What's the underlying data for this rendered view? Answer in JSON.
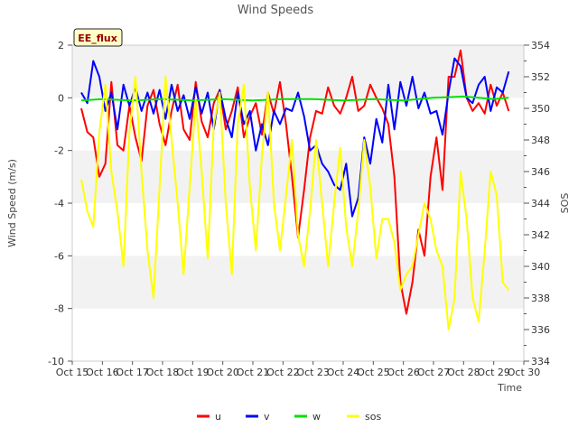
{
  "chart_data": {
    "type": "line",
    "title": "Wind Speeds",
    "badge": "EE_flux",
    "xlabel": "Time",
    "ylabel": "Wind Speed (m/s)",
    "y2label": "SOS",
    "ylim": [
      -10,
      2
    ],
    "y2lim": [
      334,
      354
    ],
    "xlim": [
      0,
      15
    ],
    "yticks": [
      -10,
      -8,
      -6,
      -4,
      -2,
      0,
      2
    ],
    "y2ticks": [
      334,
      336,
      338,
      340,
      342,
      344,
      346,
      348,
      350,
      352,
      354
    ],
    "xticks": [
      0,
      1,
      2,
      3,
      4,
      5,
      6,
      7,
      8,
      9,
      10,
      11,
      12,
      13,
      14,
      15
    ],
    "xticklabels": [
      "Oct 15",
      "Oct 16",
      "Oct 17",
      "Oct 18",
      "Oct 19",
      "Oct 20",
      "Oct 21",
      "Oct 22",
      "Oct 23",
      "Oct 24",
      "Oct 25",
      "Oct 26",
      "Oct 27",
      "Oct 28",
      "Oct 29",
      "Oct 30"
    ],
    "x_units": "days since Oct 15",
    "grid": "horizontal bands",
    "legend_position": "bottom-center",
    "series": [
      {
        "name": "u",
        "color": "#ff0000",
        "axis": "left",
        "x": [
          0.3,
          0.5,
          0.7,
          0.9,
          1.1,
          1.3,
          1.5,
          1.7,
          1.9,
          2.1,
          2.3,
          2.5,
          2.7,
          2.9,
          3.1,
          3.3,
          3.5,
          3.7,
          3.9,
          4.1,
          4.3,
          4.5,
          4.7,
          4.9,
          5.1,
          5.3,
          5.5,
          5.7,
          5.9,
          6.1,
          6.3,
          6.5,
          6.7,
          6.9,
          7.1,
          7.3,
          7.5,
          7.7,
          7.9,
          8.1,
          8.3,
          8.5,
          8.7,
          8.9,
          9.1,
          9.3,
          9.5,
          9.7,
          9.9,
          10.1,
          10.3,
          10.5,
          10.7,
          10.9,
          11.1,
          11.3,
          11.5,
          11.7,
          11.9,
          12.1,
          12.3,
          12.5,
          12.7,
          12.9,
          13.1,
          13.3,
          13.5,
          13.7,
          13.9,
          14.1,
          14.3,
          14.5
        ],
        "values": [
          -0.4,
          -1.3,
          -1.5,
          -3.0,
          -2.5,
          0.6,
          -1.8,
          -2.0,
          -0.3,
          -1.5,
          -2.4,
          -0.3,
          0.3,
          -1.0,
          -1.8,
          -0.5,
          0.5,
          -1.2,
          -1.6,
          0.6,
          -0.9,
          -1.5,
          -0.2,
          0.3,
          -1.2,
          -0.5,
          0.4,
          -1.5,
          -0.7,
          -0.2,
          -1.4,
          0.2,
          -0.6,
          0.6,
          -1.0,
          -3.0,
          -5.3,
          -3.5,
          -1.5,
          -0.5,
          -0.6,
          0.4,
          -0.3,
          -0.6,
          0.0,
          0.8,
          -0.5,
          -0.3,
          0.5,
          0.0,
          -0.4,
          -1.0,
          -3.0,
          -7.0,
          -8.2,
          -7.0,
          -5.0,
          -6.0,
          -3.0,
          -1.5,
          -3.5,
          0.8,
          0.8,
          1.8,
          0.0,
          -0.5,
          -0.2,
          -0.6,
          0.5,
          -0.3,
          0.2,
          -0.5
        ]
      },
      {
        "name": "v",
        "color": "#0000ff",
        "axis": "left",
        "x": [
          0.3,
          0.5,
          0.7,
          0.9,
          1.1,
          1.3,
          1.5,
          1.7,
          1.9,
          2.1,
          2.3,
          2.5,
          2.7,
          2.9,
          3.1,
          3.3,
          3.5,
          3.7,
          3.9,
          4.1,
          4.3,
          4.5,
          4.7,
          4.9,
          5.1,
          5.3,
          5.5,
          5.7,
          5.9,
          6.1,
          6.3,
          6.5,
          6.7,
          6.9,
          7.1,
          7.3,
          7.5,
          7.7,
          7.9,
          8.1,
          8.3,
          8.5,
          8.7,
          8.9,
          9.1,
          9.3,
          9.5,
          9.7,
          9.9,
          10.1,
          10.3,
          10.5,
          10.7,
          10.9,
          11.1,
          11.3,
          11.5,
          11.7,
          11.9,
          12.1,
          12.3,
          12.5,
          12.7,
          12.9,
          13.1,
          13.3,
          13.5,
          13.7,
          13.9,
          14.1,
          14.3,
          14.5
        ],
        "values": [
          0.2,
          -0.2,
          1.4,
          0.8,
          -0.5,
          0.2,
          -1.2,
          0.5,
          -0.3,
          0.4,
          -0.5,
          0.2,
          -0.6,
          0.3,
          -0.8,
          0.5,
          -0.5,
          0.1,
          -0.8,
          0.4,
          -0.6,
          0.2,
          -1.2,
          0.3,
          -0.8,
          -1.5,
          0.2,
          -1.0,
          -0.5,
          -2.0,
          -1.0,
          -1.8,
          -0.5,
          -1.0,
          -0.4,
          -0.5,
          0.2,
          -0.7,
          -2.0,
          -1.8,
          -2.5,
          -2.8,
          -3.3,
          -3.5,
          -2.5,
          -4.5,
          -3.8,
          -1.5,
          -2.5,
          -0.8,
          -1.7,
          0.5,
          -1.2,
          0.6,
          -0.3,
          0.8,
          -0.4,
          0.2,
          -0.6,
          -0.5,
          -1.4,
          0.2,
          1.5,
          1.2,
          0.0,
          -0.2,
          0.5,
          0.8,
          -0.5,
          0.4,
          0.2,
          1.0
        ]
      },
      {
        "name": "w",
        "color": "#00e000",
        "axis": "left",
        "x": [
          0.3,
          1.0,
          2.0,
          3.0,
          4.0,
          5.0,
          6.0,
          7.0,
          8.0,
          9.0,
          10.0,
          11.0,
          12.0,
          13.0,
          14.0,
          14.5
        ],
        "values": [
          -0.1,
          -0.05,
          -0.1,
          -0.05,
          -0.1,
          -0.05,
          -0.1,
          -0.05,
          -0.05,
          -0.1,
          -0.05,
          -0.1,
          0.0,
          0.05,
          -0.05,
          0.0
        ]
      },
      {
        "name": "sos",
        "color": "#ffff00",
        "axis": "right",
        "x": [
          0.3,
          0.5,
          0.7,
          0.9,
          1.1,
          1.3,
          1.5,
          1.7,
          1.9,
          2.1,
          2.3,
          2.5,
          2.7,
          2.9,
          3.1,
          3.3,
          3.5,
          3.7,
          3.9,
          4.1,
          4.3,
          4.5,
          4.7,
          4.9,
          5.1,
          5.3,
          5.5,
          5.7,
          5.9,
          6.1,
          6.3,
          6.5,
          6.7,
          6.9,
          7.1,
          7.3,
          7.5,
          7.7,
          7.9,
          8.1,
          8.3,
          8.5,
          8.7,
          8.9,
          9.1,
          9.3,
          9.5,
          9.7,
          9.9,
          10.1,
          10.3,
          10.5,
          10.7,
          10.9,
          11.1,
          11.3,
          11.5,
          11.7,
          11.9,
          12.1,
          12.3,
          12.5,
          12.7,
          12.9,
          13.1,
          13.3,
          13.5,
          13.7,
          13.9,
          14.1,
          14.3,
          14.5
        ],
        "values": [
          345.5,
          343.5,
          342.5,
          348.5,
          351.5,
          346,
          343.5,
          340,
          348.5,
          352,
          346,
          341,
          338,
          345,
          352,
          348,
          344,
          339.5,
          345,
          350.5,
          346,
          340.5,
          349,
          351,
          344,
          339.5,
          349,
          351.5,
          345,
          341,
          347,
          351,
          344,
          341,
          344.5,
          348,
          342,
          340,
          343.5,
          348,
          344,
          340,
          344,
          347.5,
          342.5,
          340,
          343.5,
          348,
          345,
          340.5,
          343,
          343,
          341.5,
          338.5,
          339.5,
          340,
          342,
          344,
          343,
          341,
          340,
          336,
          338,
          346,
          343,
          338,
          336.5,
          341,
          346,
          344.5,
          339,
          338.5
        ]
      }
    ]
  }
}
